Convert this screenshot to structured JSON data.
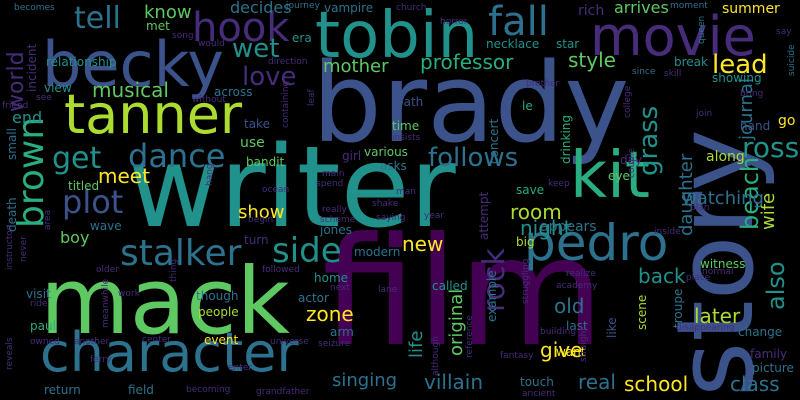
{
  "word_cloud": {
    "background": "#000000",
    "palette": [
      "#440154",
      "#472c7a",
      "#3b528b",
      "#2c728e",
      "#21918c",
      "#28ae80",
      "#5ec962",
      "#addc30",
      "#fde725"
    ],
    "words": [
      {
        "text": "film",
        "color": "#440154"
      },
      {
        "text": "writer",
        "color": "#21918c"
      },
      {
        "text": "story",
        "color": "#3b528b"
      },
      {
        "text": "brady",
        "color": "#3b528b"
      },
      {
        "text": "mack",
        "color": "#5ec962"
      },
      {
        "text": "tobin",
        "color": "#21918c"
      },
      {
        "text": "character",
        "color": "#2c728e"
      },
      {
        "text": "becky",
        "color": "#3b528b"
      },
      {
        "text": "movie",
        "color": "#472c7a"
      },
      {
        "text": "tanner",
        "color": "#addc30"
      },
      {
        "text": "hook",
        "color": "#472c7a"
      },
      {
        "text": "pedro",
        "color": "#2c728e"
      },
      {
        "text": "kit",
        "color": "#28ae80"
      },
      {
        "text": "fall",
        "color": "#2c728e"
      },
      {
        "text": "brown",
        "color": "#28ae80"
      },
      {
        "text": "stalker",
        "color": "#2c728e"
      },
      {
        "text": "dance",
        "color": "#2c728e"
      },
      {
        "text": "plot",
        "color": "#3b528b"
      },
      {
        "text": "tell",
        "color": "#2c728e"
      },
      {
        "text": "get",
        "color": "#21918c"
      },
      {
        "text": "side",
        "color": "#21918c"
      },
      {
        "text": "follows",
        "color": "#2c728e"
      },
      {
        "text": "love",
        "color": "#472c7a"
      },
      {
        "text": "wet",
        "color": "#21918c"
      },
      {
        "text": "lead",
        "color": "#fde725"
      },
      {
        "text": "rock",
        "color": "#472c7a"
      },
      {
        "text": "grass",
        "color": "#21918c"
      },
      {
        "text": "ross",
        "color": "#21918c"
      },
      {
        "text": "beach",
        "color": "#28ae80"
      },
      {
        "text": "also",
        "color": "#21918c"
      },
      {
        "text": "mother",
        "color": "#5ec962"
      },
      {
        "text": "professor",
        "color": "#28ae80"
      },
      {
        "text": "world",
        "color": "#472c7a"
      },
      {
        "text": "musical",
        "color": "#5ec962"
      },
      {
        "text": "meet",
        "color": "#fde725"
      },
      {
        "text": "style",
        "color": "#5ec962"
      },
      {
        "text": "night",
        "color": "#21918c"
      },
      {
        "text": "room",
        "color": "#addc30"
      },
      {
        "text": "daughter",
        "color": "#2c728e"
      },
      {
        "text": "journal",
        "color": "#2c728e"
      },
      {
        "text": "wife",
        "color": "#addc30"
      },
      {
        "text": "watching",
        "color": "#2c728e"
      },
      {
        "text": "school",
        "color": "#fde725"
      },
      {
        "text": "villain",
        "color": "#2c728e"
      },
      {
        "text": "singing",
        "color": "#2c728e"
      },
      {
        "text": "life",
        "color": "#21918c"
      },
      {
        "text": "original",
        "color": "#5ec962"
      },
      {
        "text": "give",
        "color": "#fde725"
      },
      {
        "text": "real",
        "color": "#2c728e"
      },
      {
        "text": "later",
        "color": "#addc30"
      },
      {
        "text": "old",
        "color": "#2c728e"
      },
      {
        "text": "back",
        "color": "#21918c"
      },
      {
        "text": "zone",
        "color": "#fde725"
      },
      {
        "text": "show",
        "color": "#fde725"
      },
      {
        "text": "boy",
        "color": "#5ec962"
      },
      {
        "text": "new",
        "color": "#fde725"
      },
      {
        "text": "class",
        "color": "#2c728e"
      },
      {
        "text": "end",
        "color": "#21918c"
      },
      {
        "text": "know",
        "color": "#5ec962"
      },
      {
        "text": "decides",
        "color": "#2c728e"
      },
      {
        "text": "vampire",
        "color": "#2c728e"
      },
      {
        "text": "rich",
        "color": "#472c7a"
      },
      {
        "text": "arrives",
        "color": "#5ec962"
      },
      {
        "text": "summer",
        "color": "#fde725"
      },
      {
        "text": "incident",
        "color": "#472c7a"
      },
      {
        "text": "relationship",
        "color": "#21918c"
      },
      {
        "text": "met",
        "color": "#5ec962"
      },
      {
        "text": "era",
        "color": "#21918c"
      },
      {
        "text": "necklace",
        "color": "#21918c"
      },
      {
        "text": "star",
        "color": "#21918c"
      },
      {
        "text": "break",
        "color": "#21918c"
      },
      {
        "text": "showing",
        "color": "#21918c"
      },
      {
        "text": "view",
        "color": "#21918c"
      },
      {
        "text": "across",
        "color": "#2c728e"
      },
      {
        "text": "path",
        "color": "#3b528b"
      },
      {
        "text": "concert",
        "color": "#2c728e"
      },
      {
        "text": "le",
        "color": "#28ae80"
      },
      {
        "text": "time",
        "color": "#5ec962"
      },
      {
        "text": "drinking",
        "color": "#28ae80"
      },
      {
        "text": "hand",
        "color": "#3b528b"
      },
      {
        "text": "go",
        "color": "#fde725"
      },
      {
        "text": "take",
        "color": "#3b528b"
      },
      {
        "text": "use",
        "color": "#5ec962"
      },
      {
        "text": "bandit",
        "color": "#5ec962"
      },
      {
        "text": "various",
        "color": "#5ec962"
      },
      {
        "text": "asks",
        "color": "#2c728e"
      },
      {
        "text": "girl",
        "color": "#472c7a"
      },
      {
        "text": "eye",
        "color": "#5ec962"
      },
      {
        "text": "day",
        "color": "#472c7a"
      },
      {
        "text": "along",
        "color": "#addc30"
      },
      {
        "text": "titled",
        "color": "#5ec962"
      },
      {
        "text": "save",
        "color": "#28ae80"
      },
      {
        "text": "appears",
        "color": "#2c728e"
      },
      {
        "text": "jones",
        "color": "#2c728e"
      },
      {
        "text": "wave",
        "color": "#2c728e"
      },
      {
        "text": "modern",
        "color": "#2c728e"
      },
      {
        "text": "big",
        "color": "#addc30"
      },
      {
        "text": "attempt",
        "color": "#472c7a"
      },
      {
        "text": "witness",
        "color": "#5ec962"
      },
      {
        "text": "visit",
        "color": "#2c728e"
      },
      {
        "text": "turn",
        "color": "#472c7a"
      },
      {
        "text": "home",
        "color": "#21918c"
      },
      {
        "text": "called",
        "color": "#21918c"
      },
      {
        "text": "actor",
        "color": "#2c728e"
      },
      {
        "text": "though",
        "color": "#2c728e"
      },
      {
        "text": "people",
        "color": "#addc30"
      },
      {
        "text": "arm",
        "color": "#2c728e"
      },
      {
        "text": "paul",
        "color": "#28ae80"
      },
      {
        "text": "event",
        "color": "#fde725"
      },
      {
        "text": "scene",
        "color": "#addc30"
      },
      {
        "text": "want",
        "color": "#fde725"
      },
      {
        "text": "like",
        "color": "#3b528b"
      },
      {
        "text": "last",
        "color": "#2c728e"
      },
      {
        "text": "change",
        "color": "#2c728e"
      },
      {
        "text": "family",
        "color": "#472c7a"
      },
      {
        "text": "picture",
        "color": "#2c728e"
      },
      {
        "text": "troupe",
        "color": "#2c728e"
      },
      {
        "text": "return",
        "color": "#2c728e"
      },
      {
        "text": "field",
        "color": "#2c728e"
      },
      {
        "text": "touch",
        "color": "#2c728e"
      },
      {
        "text": "example",
        "color": "#2c728e"
      },
      {
        "text": "death",
        "color": "#2c728e"
      },
      {
        "text": "small",
        "color": "#2c728e"
      },
      {
        "text": "journey",
        "color": "#2c728e"
      },
      {
        "text": "church",
        "color": "#472c7a"
      },
      {
        "text": "horror",
        "color": "#472c7a"
      },
      {
        "text": "moment",
        "color": "#2c728e"
      },
      {
        "text": "becomes",
        "color": "#2c728e"
      },
      {
        "text": "queen",
        "color": "#2c728e"
      },
      {
        "text": "say",
        "color": "#472c7a"
      },
      {
        "text": "since",
        "color": "#2c728e"
      },
      {
        "text": "skill",
        "color": "#472c7a"
      },
      {
        "text": "bring",
        "color": "#472c7a"
      },
      {
        "text": "suicide",
        "color": "#2c728e"
      },
      {
        "text": "join",
        "color": "#472c7a"
      },
      {
        "text": "brother",
        "color": "#472c7a"
      },
      {
        "text": "college",
        "color": "#472c7a"
      },
      {
        "text": "couple",
        "color": "#472c7a"
      },
      {
        "text": "plan",
        "color": "#472c7a"
      },
      {
        "text": "inside",
        "color": "#472c7a"
      },
      {
        "text": "keep",
        "color": "#472c7a"
      },
      {
        "text": "struggling",
        "color": "#472c7a"
      },
      {
        "text": "reference",
        "color": "#472c7a"
      },
      {
        "text": "although",
        "color": "#472c7a"
      },
      {
        "text": "building",
        "color": "#472c7a"
      },
      {
        "text": "straight",
        "color": "#472c7a"
      },
      {
        "text": "realize",
        "color": "#472c7a"
      },
      {
        "text": "academy",
        "color": "#472c7a"
      },
      {
        "text": "place",
        "color": "#472c7a"
      },
      {
        "text": "normal",
        "color": "#472c7a"
      },
      {
        "text": "disappearing",
        "color": "#472c7a"
      },
      {
        "text": "fantasy",
        "color": "#472c7a"
      },
      {
        "text": "universe",
        "color": "#472c7a"
      },
      {
        "text": "seizure",
        "color": "#472c7a"
      },
      {
        "text": "center",
        "color": "#472c7a"
      },
      {
        "text": "owned",
        "color": "#472c7a"
      },
      {
        "text": "another",
        "color": "#472c7a"
      },
      {
        "text": "meanwhile",
        "color": "#472c7a"
      },
      {
        "text": "reveals",
        "color": "#472c7a"
      },
      {
        "text": "ferry",
        "color": "#472c7a"
      },
      {
        "text": "becoming",
        "color": "#472c7a"
      },
      {
        "text": "grandfather",
        "color": "#472c7a"
      },
      {
        "text": "ancient",
        "color": "#472c7a"
      },
      {
        "text": "enter",
        "color": "#472c7a"
      },
      {
        "text": "instructor",
        "color": "#472c7a"
      },
      {
        "text": "ride",
        "color": "#472c7a"
      },
      {
        "text": "older",
        "color": "#472c7a"
      },
      {
        "text": "work",
        "color": "#472c7a"
      },
      {
        "text": "thing",
        "color": "#472c7a"
      },
      {
        "text": "next",
        "color": "#472c7a"
      },
      {
        "text": "lane",
        "color": "#472c7a"
      },
      {
        "text": "followed",
        "color": "#472c7a"
      },
      {
        "text": "begin",
        "color": "#472c7a"
      },
      {
        "text": "really",
        "color": "#472c7a"
      },
      {
        "text": "scheme",
        "color": "#472c7a"
      },
      {
        "text": "saying",
        "color": "#472c7a"
      },
      {
        "text": "year",
        "color": "#472c7a"
      },
      {
        "text": "shake",
        "color": "#472c7a"
      },
      {
        "text": "man",
        "color": "#472c7a"
      },
      {
        "text": "spend",
        "color": "#472c7a"
      },
      {
        "text": "main",
        "color": "#472c7a"
      },
      {
        "text": "ocean",
        "color": "#472c7a"
      },
      {
        "text": "hang",
        "color": "#472c7a"
      },
      {
        "text": "area",
        "color": "#472c7a"
      },
      {
        "text": "containing",
        "color": "#472c7a"
      },
      {
        "text": "leaf",
        "color": "#472c7a"
      },
      {
        "text": "direction",
        "color": "#472c7a"
      },
      {
        "text": "without",
        "color": "#472c7a"
      },
      {
        "text": "friend",
        "color": "#472c7a"
      },
      {
        "text": "see",
        "color": "#472c7a"
      },
      {
        "text": "never",
        "color": "#472c7a"
      },
      {
        "text": "song",
        "color": "#472c7a"
      },
      {
        "text": "would",
        "color": "#472c7a"
      },
      {
        "text": "insists",
        "color": "#472c7a"
      }
    ]
  }
}
